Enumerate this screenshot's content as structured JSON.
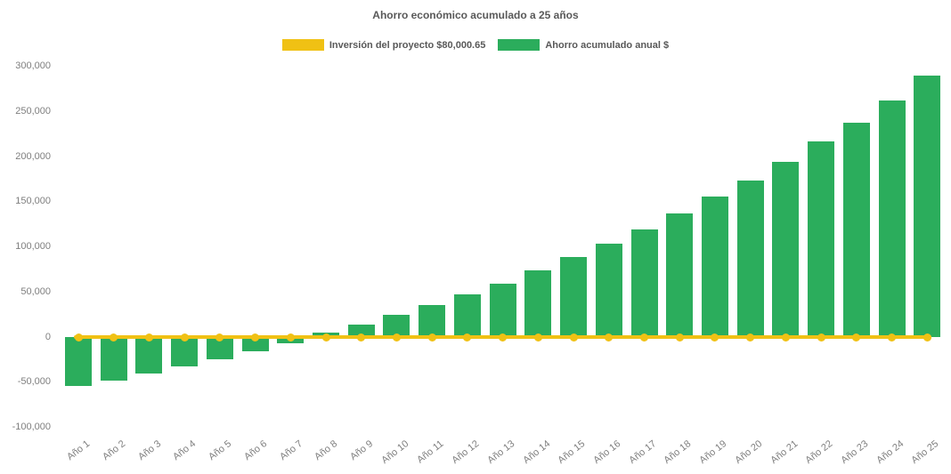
{
  "chart_data": {
    "type": "bar",
    "title": "Ahorro económico acumulado a 25 años",
    "categories": [
      "Año 1",
      "Año 2",
      "Año 3",
      "Año 4",
      "Año 5",
      "Año 6",
      "Año 7",
      "Año 8",
      "Año 9",
      "Año 10",
      "Año 11",
      "Año 12",
      "Año 13",
      "Año 14",
      "Año 15",
      "Año 16",
      "Año 17",
      "Año 18",
      "Año 19",
      "Año 20",
      "Año 21",
      "Año 22",
      "Año 23",
      "Año 24",
      "Año 25"
    ],
    "series": [
      {
        "name": "Inversión del proyecto $80,000.65",
        "type": "line",
        "color": "#F0C114",
        "values": [
          0,
          0,
          0,
          0,
          0,
          0,
          0,
          0,
          0,
          0,
          0,
          0,
          0,
          0,
          0,
          0,
          0,
          0,
          0,
          0,
          0,
          0,
          0,
          0,
          0
        ]
      },
      {
        "name": "Ahorro acumulado anual $",
        "type": "bar",
        "color": "#2BAD5C",
        "values": [
          -54500,
          -48000,
          -40000,
          -33000,
          -24500,
          -16000,
          -7000,
          4500,
          14000,
          24500,
          35500,
          47500,
          59000,
          74000,
          88500,
          103500,
          119000,
          137500,
          155500,
          174000,
          194000,
          216500,
          237500,
          262500,
          290000
        ]
      }
    ],
    "ylim": [
      -100000,
      300000
    ],
    "yticks": [
      {
        "value": 300000,
        "label": "300,000"
      },
      {
        "value": 250000,
        "label": "250,000"
      },
      {
        "value": 200000,
        "label": "200,000"
      },
      {
        "value": 150000,
        "label": "150,000"
      },
      {
        "value": 100000,
        "label": "100,000"
      },
      {
        "value": 50000,
        "label": "50,000"
      },
      {
        "value": 0,
        "label": "0"
      },
      {
        "value": -50000,
        "label": "-50,000"
      },
      {
        "value": -100000,
        "label": "-100,000"
      }
    ],
    "grid": false,
    "legend_position": "top",
    "background": "#FFFFFF"
  }
}
